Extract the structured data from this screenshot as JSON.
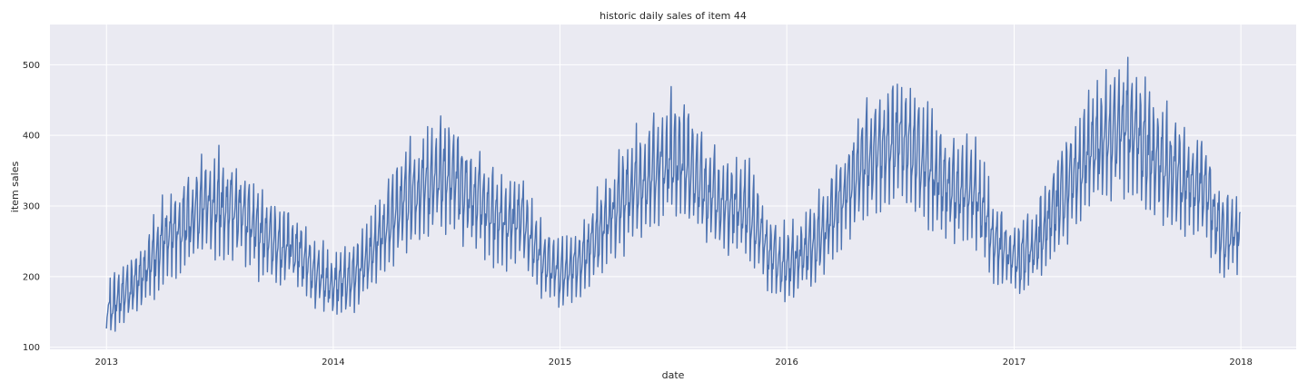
{
  "chart_data": {
    "type": "line",
    "title": "historic daily sales of item 44",
    "xlabel": "date",
    "ylabel": "item sales",
    "x_range": [
      "2012-10-02",
      "2018-03-31"
    ],
    "ylim": [
      97,
      557
    ],
    "x_ticks": [
      "2013",
      "2014",
      "2015",
      "2016",
      "2017",
      "2018"
    ],
    "y_ticks": [
      100,
      200,
      300,
      400,
      500
    ],
    "grid": true,
    "legend": "none",
    "series": [
      {
        "color": "#4c72b0",
        "frequency": "daily",
        "start": "2013-01-01",
        "end": "2017-12-31",
        "points": [
          [
            "2013-01-01",
            155
          ],
          [
            "2013-02-01",
            175
          ],
          [
            "2013-03-01",
            200
          ],
          [
            "2013-04-01",
            245
          ],
          [
            "2013-05-01",
            270
          ],
          [
            "2013-06-01",
            290
          ],
          [
            "2013-07-01",
            305
          ],
          [
            "2013-08-01",
            290
          ],
          [
            "2013-09-01",
            265
          ],
          [
            "2013-10-01",
            245
          ],
          [
            "2013-11-01",
            240
          ],
          [
            "2013-12-01",
            205
          ],
          [
            "2014-01-01",
            185
          ],
          [
            "2014-02-01",
            200
          ],
          [
            "2014-03-01",
            230
          ],
          [
            "2014-04-01",
            275
          ],
          [
            "2014-05-01",
            310
          ],
          [
            "2014-06-01",
            330
          ],
          [
            "2014-07-01",
            345
          ],
          [
            "2014-08-01",
            325
          ],
          [
            "2014-09-01",
            295
          ],
          [
            "2014-10-01",
            280
          ],
          [
            "2014-11-01",
            275
          ],
          [
            "2014-12-01",
            225
          ],
          [
            "2015-01-01",
            205
          ],
          [
            "2015-02-01",
            215
          ],
          [
            "2015-03-01",
            255
          ],
          [
            "2015-04-01",
            295
          ],
          [
            "2015-05-01",
            330
          ],
          [
            "2015-06-01",
            350
          ],
          [
            "2015-07-01",
            370
          ],
          [
            "2015-08-01",
            345
          ],
          [
            "2015-09-01",
            315
          ],
          [
            "2015-10-01",
            300
          ],
          [
            "2015-11-01",
            295
          ],
          [
            "2015-12-01",
            230
          ],
          [
            "2016-01-01",
            215
          ],
          [
            "2016-02-01",
            230
          ],
          [
            "2016-03-01",
            265
          ],
          [
            "2016-04-01",
            315
          ],
          [
            "2016-05-01",
            355
          ],
          [
            "2016-06-01",
            375
          ],
          [
            "2016-07-01",
            395
          ],
          [
            "2016-08-01",
            365
          ],
          [
            "2016-09-01",
            335
          ],
          [
            "2016-10-01",
            320
          ],
          [
            "2016-11-01",
            315
          ],
          [
            "2016-12-01",
            245
          ],
          [
            "2017-01-01",
            220
          ],
          [
            "2017-02-01",
            240
          ],
          [
            "2017-03-01",
            285
          ],
          [
            "2017-04-01",
            335
          ],
          [
            "2017-05-01",
            375
          ],
          [
            "2017-06-01",
            395
          ],
          [
            "2017-07-01",
            415
          ],
          [
            "2017-08-01",
            380
          ],
          [
            "2017-09-01",
            350
          ],
          [
            "2017-10-01",
            335
          ],
          [
            "2017-11-01",
            330
          ],
          [
            "2017-12-01",
            255
          ],
          [
            "2017-12-31",
            270
          ]
        ],
        "weekly_amplitude": 0.22,
        "max": 549,
        "min": 118
      }
    ]
  }
}
